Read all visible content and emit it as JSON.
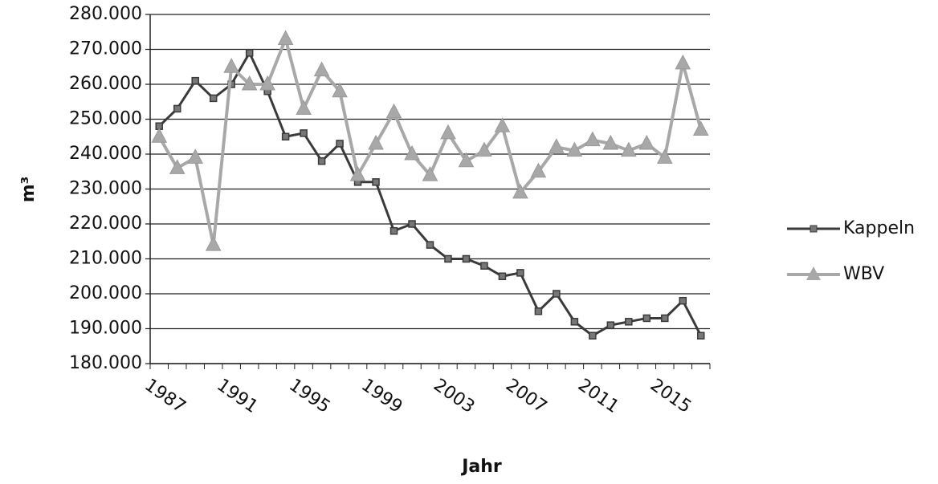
{
  "chart_data": {
    "type": "line",
    "x_label": "Jahr",
    "y_label": "m³",
    "categories": [
      1987,
      null,
      null,
      null,
      1991,
      null,
      null,
      null,
      1995,
      null,
      null,
      null,
      1999,
      null,
      null,
      null,
      2003,
      null,
      null,
      null,
      2007,
      null,
      null,
      null,
      2011,
      null,
      null,
      null,
      2015,
      null,
      null
    ],
    "series": [
      {
        "name": "Kappeln",
        "color": "#3a3a3a",
        "marker": "square",
        "values": [
          248000,
          253000,
          261000,
          256000,
          260000,
          269000,
          258000,
          245000,
          246000,
          238000,
          243000,
          232000,
          232000,
          218000,
          220000,
          214000,
          210000,
          210000,
          208000,
          205000,
          206000,
          195000,
          200000,
          192000,
          188000,
          191000,
          192000,
          193000,
          193000,
          198000,
          188000
        ]
      },
      {
        "name": "WBV",
        "color": "#a8a8a8",
        "marker": "triangle",
        "values": [
          245000,
          236000,
          239000,
          214000,
          265000,
          260000,
          260000,
          273000,
          253000,
          264000,
          258000,
          234000,
          243000,
          252000,
          240000,
          234000,
          246000,
          238000,
          241000,
          248000,
          229000,
          235000,
          242000,
          241000,
          244000,
          243000,
          241000,
          243000,
          239000,
          266000,
          247000
        ]
      }
    ],
    "ylim": [
      180000,
      280000
    ],
    "yticks": [
      {
        "value": 180000,
        "label": "180.000"
      },
      {
        "value": 190000,
        "label": "190.000"
      },
      {
        "value": 200000,
        "label": "200.000"
      },
      {
        "value": 210000,
        "label": "210.000"
      },
      {
        "value": 220000,
        "label": "220.000"
      },
      {
        "value": 230000,
        "label": "230.000"
      },
      {
        "value": 240000,
        "label": "240.000"
      },
      {
        "value": 250000,
        "label": "250.000"
      },
      {
        "value": 260000,
        "label": "260.000"
      },
      {
        "value": 270000,
        "label": "270.000"
      },
      {
        "value": 280000,
        "label": "280.000"
      }
    ],
    "grid": true,
    "legend": "right"
  }
}
